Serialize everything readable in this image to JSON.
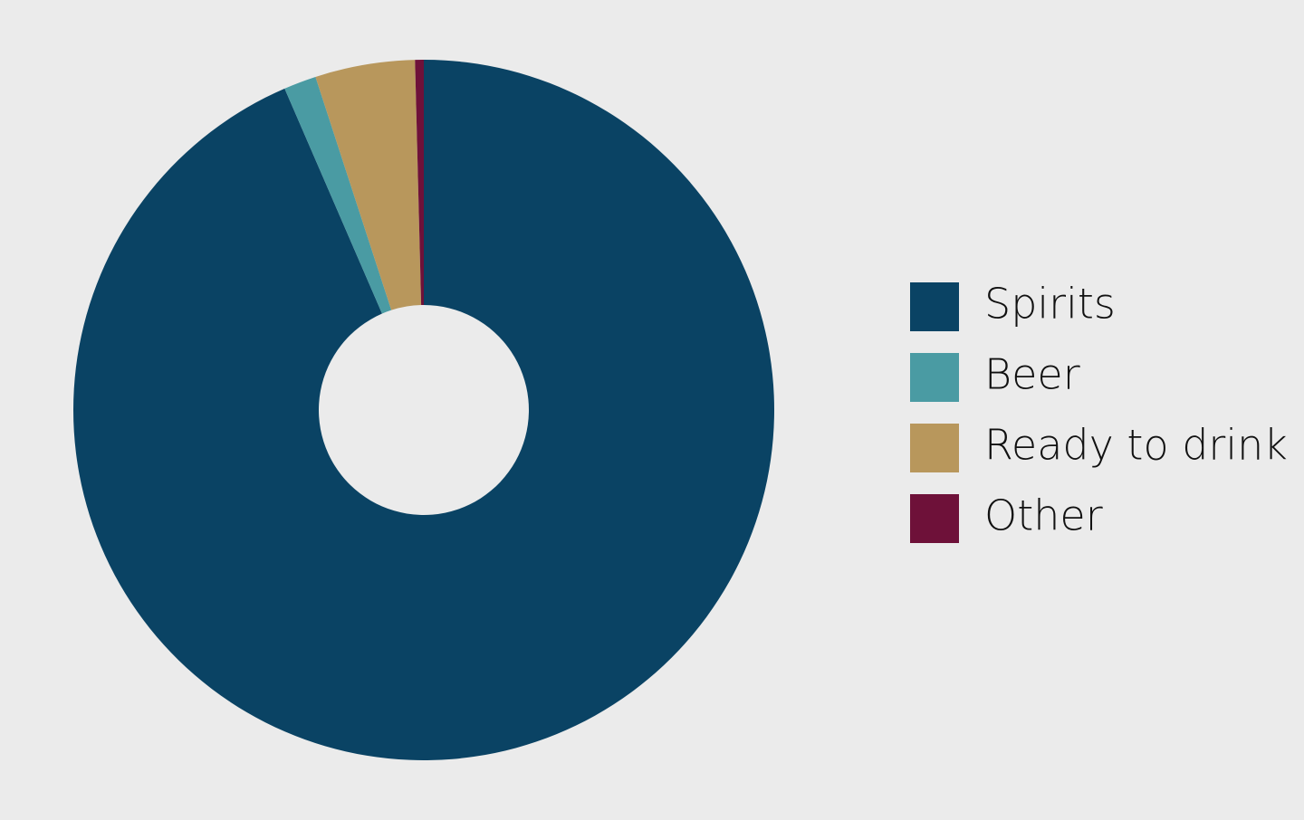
{
  "chart_data": {
    "type": "donut",
    "categories": [
      "Spirits",
      "Beer",
      "Ready to drink",
      "Other"
    ],
    "values": [
      93.5,
      1.5,
      4.6,
      0.4
    ],
    "colors": [
      "#0a4364",
      "#4a9ba3",
      "#b8975c",
      "#6e1139"
    ],
    "legend": "right"
  }
}
